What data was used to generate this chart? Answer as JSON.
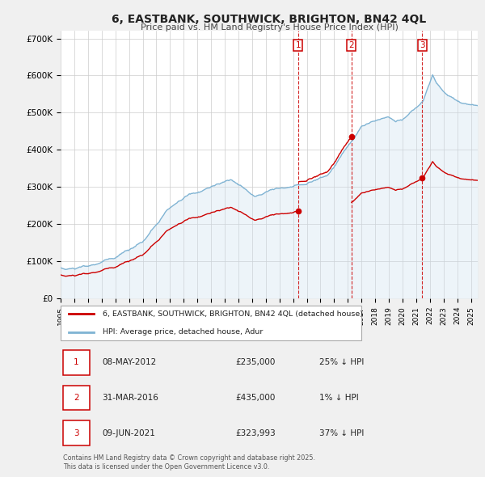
{
  "title": "6, EASTBANK, SOUTHWICK, BRIGHTON, BN42 4QL",
  "subtitle": "Price paid vs. HM Land Registry's House Price Index (HPI)",
  "legend_entry1": "6, EASTBANK, SOUTHWICK, BRIGHTON, BN42 4QL (detached house)",
  "legend_entry2": "HPI: Average price, detached house, Adur",
  "sale_color": "#cc0000",
  "hpi_color": "#7fb3d3",
  "hpi_fill_color": "#cde0ef",
  "vline_color": "#cc0000",
  "annotation_box_color": "#cc0000",
  "table_rows": [
    {
      "num": "1",
      "date": "08-MAY-2012",
      "price": "£235,000",
      "pct": "25% ↓ HPI"
    },
    {
      "num": "2",
      "date": "31-MAR-2016",
      "price": "£435,000",
      "pct": "1% ↓ HPI"
    },
    {
      "num": "3",
      "date": "09-JUN-2021",
      "price": "£323,993",
      "pct": "37% ↓ HPI"
    }
  ],
  "vline_x": [
    2012.36,
    2016.25,
    2021.44
  ],
  "footnote": "Contains HM Land Registry data © Crown copyright and database right 2025.\nThis data is licensed under the Open Government Licence v3.0.",
  "ylim": [
    0,
    720000
  ],
  "yticks": [
    0,
    100000,
    200000,
    300000,
    400000,
    500000,
    600000,
    700000
  ],
  "ytick_labels": [
    "£0",
    "£100K",
    "£200K",
    "£300K",
    "£400K",
    "£500K",
    "£600K",
    "£700K"
  ],
  "xlim_start": 1995,
  "xlim_end": 2025.5,
  "background_color": "#f0f0f0",
  "plot_bg_color": "#ffffff",
  "grid_color": "#cccccc",
  "sale_points": [
    [
      2012.36,
      235000
    ],
    [
      2016.25,
      435000
    ],
    [
      2021.44,
      323993
    ]
  ]
}
